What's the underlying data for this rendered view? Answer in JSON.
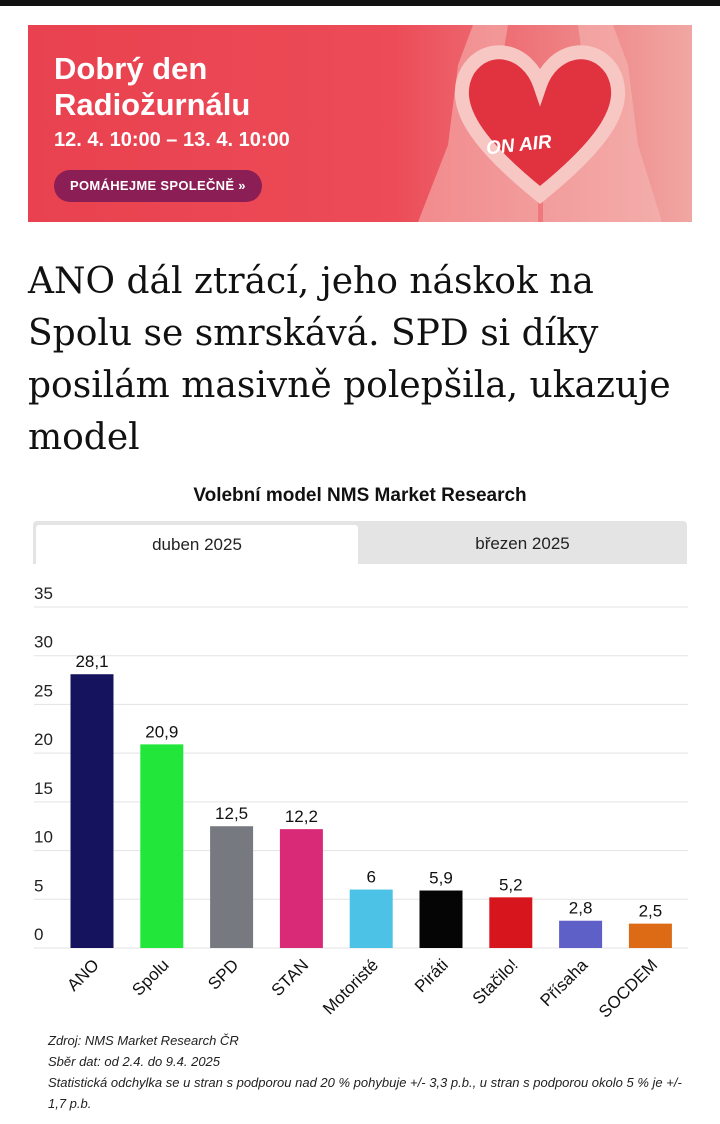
{
  "banner": {
    "title_line1": "Dobrý den",
    "title_line2": "Radiožurnálu",
    "dates": "12. 4. 10:00 – 13. 4. 10:00",
    "button_label": "POMÁHEJME SPOLEČNĚ »",
    "on_air": "ON AIR",
    "colors": {
      "background": "#e9414f",
      "button": "#8b1e55"
    }
  },
  "article": {
    "headline": "ANO dál ztrácí, jeho náskok na Spolu se smrskává. SPD si díky posilám masivně polepšila, ukazuje model"
  },
  "chart_section": {
    "title": "Volební model NMS Market Research",
    "tabs": [
      {
        "label": "duben 2025",
        "active": true
      },
      {
        "label": "březen 2025",
        "active": false
      }
    ]
  },
  "chart_data": {
    "type": "bar",
    "title": "Volební model NMS Market Research",
    "xlabel": "",
    "ylabel": "",
    "ylim": [
      0,
      35
    ],
    "yticks": [
      0,
      5,
      10,
      15,
      20,
      25,
      30,
      35
    ],
    "grid": true,
    "categories": [
      "ANO",
      "Spolu",
      "SPD",
      "STAN",
      "Motoristé",
      "Piráti",
      "Stačilo!",
      "Přísaha",
      "SOCDEM"
    ],
    "values": [
      28.1,
      20.9,
      12.5,
      12.2,
      6,
      5.9,
      5.2,
      2.8,
      2.5
    ],
    "value_labels": [
      "28,1",
      "20,9",
      "12,5",
      "12,2",
      "6",
      "5,9",
      "5,2",
      "2,8",
      "2,5"
    ],
    "colors": [
      "#15135e",
      "#22e63a",
      "#767a80",
      "#d92a78",
      "#4cc3e6",
      "#050505",
      "#d7151c",
      "#5f5fc8",
      "#dd6a14"
    ]
  },
  "notes": {
    "source": "Zdroj: NMS Market Research ČR",
    "collection": "Sběr dat: od 2.4. do 9.4. 2025",
    "error": "Statistická odchylka se u stran s podporou nad 20 % pohybuje +/- 3,3 p.b., u stran s podporou okolo 5 % je +/- 1,7 p.b."
  }
}
